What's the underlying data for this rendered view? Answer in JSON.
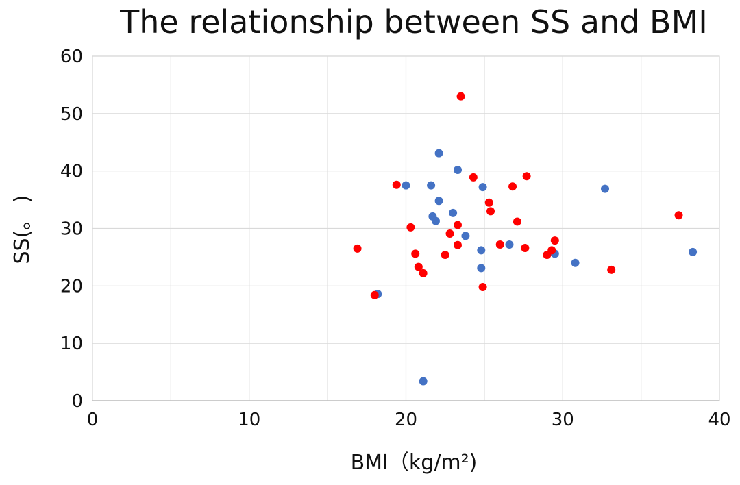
{
  "chart_data": {
    "type": "scatter",
    "title": "The relationship between SS and BMI",
    "xlabel": "BMI（kg/m²)",
    "ylabel": "SS(。 )",
    "xlim": [
      0,
      40
    ],
    "ylim": [
      0,
      60
    ],
    "xticks": [
      0,
      5,
      10,
      15,
      20,
      25,
      30,
      35,
      40
    ],
    "yticks": [
      0,
      10,
      20,
      30,
      40,
      50,
      60
    ],
    "xtick_labels": [
      "0",
      "",
      "10",
      "",
      "20",
      "",
      "30",
      "",
      "40"
    ],
    "ytick_labels": [
      "0",
      "10",
      "20",
      "30",
      "40",
      "50",
      "60"
    ],
    "grid": true,
    "legend": "none",
    "series": [
      {
        "color": "#4472C4",
        "points": [
          [
            18.2,
            18.6
          ],
          [
            20.0,
            37.5
          ],
          [
            21.1,
            3.4
          ],
          [
            21.6,
            37.5
          ],
          [
            21.7,
            32.1
          ],
          [
            21.9,
            31.3
          ],
          [
            22.1,
            43.1
          ],
          [
            22.1,
            34.8
          ],
          [
            23.0,
            32.7
          ],
          [
            23.3,
            40.2
          ],
          [
            23.8,
            28.7
          ],
          [
            24.8,
            26.2
          ],
          [
            24.8,
            23.1
          ],
          [
            24.9,
            37.2
          ],
          [
            26.6,
            27.2
          ],
          [
            29.5,
            25.6
          ],
          [
            30.8,
            24.0
          ],
          [
            32.7,
            36.9
          ],
          [
            38.3,
            25.9
          ]
        ]
      },
      {
        "color": "#FF0000",
        "points": [
          [
            16.9,
            26.5
          ],
          [
            18.0,
            18.4
          ],
          [
            19.4,
            37.6
          ],
          [
            20.3,
            30.2
          ],
          [
            20.6,
            25.6
          ],
          [
            20.8,
            23.3
          ],
          [
            21.1,
            22.2
          ],
          [
            22.5,
            25.4
          ],
          [
            22.8,
            29.1
          ],
          [
            23.3,
            30.6
          ],
          [
            23.3,
            27.1
          ],
          [
            23.5,
            53.0
          ],
          [
            24.3,
            38.9
          ],
          [
            24.9,
            19.8
          ],
          [
            25.3,
            34.5
          ],
          [
            25.4,
            33.0
          ],
          [
            26.0,
            27.2
          ],
          [
            26.8,
            37.3
          ],
          [
            27.1,
            31.2
          ],
          [
            27.6,
            26.6
          ],
          [
            27.7,
            39.1
          ],
          [
            29.0,
            25.4
          ],
          [
            29.3,
            26.2
          ],
          [
            29.5,
            27.9
          ],
          [
            33.1,
            22.8
          ],
          [
            37.4,
            32.3
          ]
        ]
      }
    ]
  }
}
